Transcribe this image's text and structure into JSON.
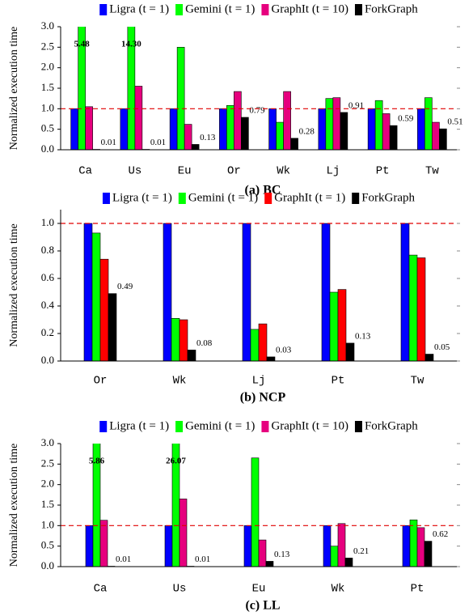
{
  "chart_data": [
    {
      "type": "bar",
      "title": "(a) BC",
      "ylabel": "Normalized execution time",
      "categories": [
        "Ca",
        "Us",
        "Eu",
        "Or",
        "Wk",
        "Lj",
        "Pt",
        "Tw"
      ],
      "series": [
        {
          "name": "Ligra (t = 1)",
          "color": "#0000ff",
          "values": [
            1.0,
            1.0,
            1.0,
            1.0,
            1.0,
            1.0,
            1.0,
            1.0
          ]
        },
        {
          "name": "Gemini (t = 1)",
          "color": "#00ff00",
          "values": [
            5.48,
            14.3,
            2.5,
            1.08,
            0.67,
            1.25,
            1.2,
            1.27
          ],
          "value_labels": [
            "5.48",
            "14.30",
            null,
            null,
            null,
            null,
            null,
            null
          ]
        },
        {
          "name": "GraphIt (t = 10)",
          "color": "#e6007e",
          "values": [
            1.05,
            1.55,
            0.62,
            1.42,
            1.42,
            1.27,
            0.88,
            0.67
          ]
        },
        {
          "name": "ForkGraph",
          "color": "#000000",
          "values": [
            0.01,
            0.01,
            0.13,
            0.79,
            0.28,
            0.91,
            0.59,
            0.51
          ],
          "show_values": true
        }
      ],
      "ylim": [
        0,
        3
      ],
      "yticks": [
        {
          "value": 0,
          "label": "0.0"
        },
        0.5,
        {
          "value": 1,
          "label": "1.0"
        },
        1.5,
        {
          "value": 2,
          "label": "2.0"
        },
        2.5,
        {
          "value": 3,
          "label": "3.0"
        }
      ],
      "reference_line": 1
    },
    {
      "type": "bar",
      "title": "(b) NCP",
      "ylabel": "Normalized execution time",
      "categories": [
        "Or",
        "Wk",
        "Lj",
        "Pt",
        "Tw"
      ],
      "series": [
        {
          "name": "Ligra (t = 1)",
          "color": "#0000ff",
          "values": [
            1.0,
            1.0,
            1.0,
            1.0,
            1.0
          ]
        },
        {
          "name": "Gemini (t = 1)",
          "color": "#00ff00",
          "values": [
            0.93,
            0.31,
            0.23,
            0.5,
            0.77
          ]
        },
        {
          "name": "GraphIt (t = 1)",
          "color": "#ff0000",
          "values": [
            0.74,
            0.3,
            0.27,
            0.52,
            0.75
          ]
        },
        {
          "name": "ForkGraph",
          "color": "#000000",
          "values": [
            0.49,
            0.08,
            0.03,
            0.13,
            0.05
          ],
          "show_values": true
        }
      ],
      "ylim": [
        0,
        1.1
      ],
      "yticks": [
        {
          "value": 0,
          "label": "0.0"
        },
        0.2,
        0.4,
        0.6,
        0.8,
        {
          "value": 1,
          "label": "1.0"
        }
      ],
      "reference_line": 1
    },
    {
      "type": "bar",
      "title": "(c) LL",
      "ylabel": "Normalized execution time",
      "categories": [
        "Ca",
        "Us",
        "Eu",
        "Wk",
        "Pt"
      ],
      "series": [
        {
          "name": "Ligra (t = 1)",
          "color": "#0000ff",
          "values": [
            1.0,
            1.0,
            1.0,
            1.0,
            1.0
          ]
        },
        {
          "name": "Gemini (t = 1)",
          "color": "#00ff00",
          "values": [
            5.86,
            26.07,
            2.65,
            0.5,
            1.14
          ],
          "value_labels": [
            "5.86",
            "26.07",
            null,
            null,
            null
          ]
        },
        {
          "name": "GraphIt (t = 10)",
          "color": "#e6007e",
          "values": [
            1.13,
            1.65,
            0.65,
            1.05,
            0.95
          ]
        },
        {
          "name": "ForkGraph",
          "color": "#000000",
          "values": [
            0.01,
            0.01,
            0.13,
            0.21,
            0.62
          ],
          "show_values": true
        }
      ],
      "ylim": [
        0,
        3
      ],
      "yticks": [
        {
          "value": 0,
          "label": "0.0"
        },
        0.5,
        {
          "value": 1,
          "label": "1.0"
        },
        1.5,
        {
          "value": 2,
          "label": "2.0"
        },
        2.5,
        {
          "value": 3,
          "label": "3.0"
        }
      ],
      "reference_line": 1
    }
  ]
}
